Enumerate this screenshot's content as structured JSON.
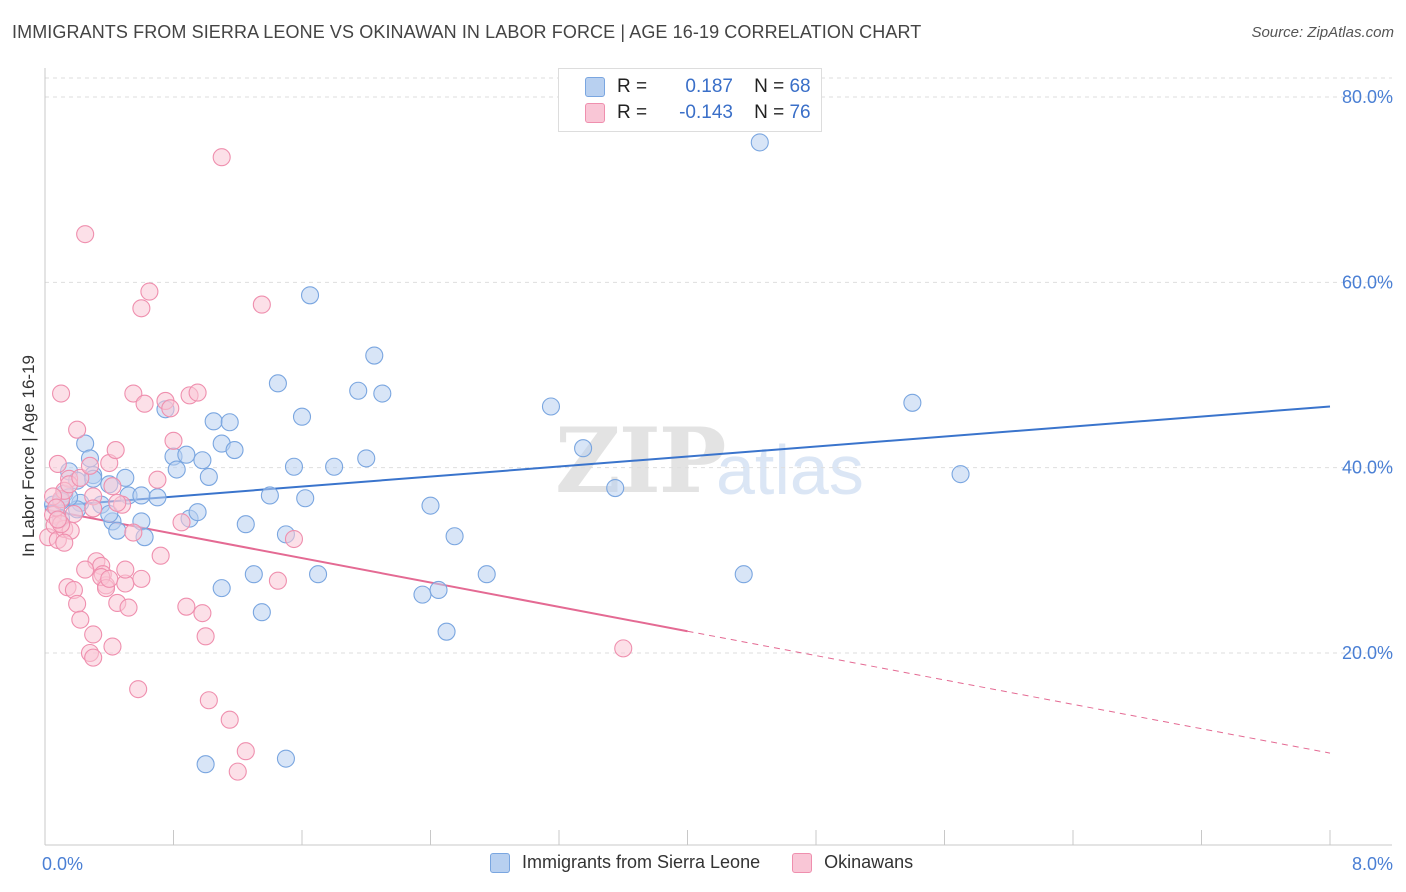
{
  "title": "IMMIGRANTS FROM SIERRA LEONE VS OKINAWAN IN LABOR FORCE | AGE 16-19 CORRELATION CHART",
  "source": "Source: ZipAtlas.com",
  "watermark": {
    "zip": "ZIP",
    "atlas": "atlas"
  },
  "colors": {
    "blue_fill": "#b8d0f0",
    "blue_stroke": "#7aa6e0",
    "blue_line": "#3a74cc",
    "pink_fill": "#f9c6d6",
    "pink_stroke": "#ef8fae",
    "pink_line": "#e46a93",
    "tick_text": "#4a7fd4"
  },
  "legend": {
    "rows": [
      {
        "r_label": "R =",
        "r_value": "0.187",
        "n_label": "N =",
        "n_value": "68"
      },
      {
        "r_label": "R =",
        "r_value": "-0.143",
        "n_label": "N =",
        "n_value": "76"
      }
    ]
  },
  "bottom_legend": [
    "Immigrants from Sierra Leone",
    "Okinawans"
  ],
  "chart_data": {
    "type": "scatter",
    "title": "IMMIGRANTS FROM SIERRA LEONE VS OKINAWAN IN LABOR FORCE | AGE 16-19 CORRELATION CHART",
    "xlabel": "",
    "ylabel": "In Labor Force | Age 16-19",
    "xlim": [
      0,
      8
    ],
    "ylim": [
      0,
      83
    ],
    "x_tick_labels": [
      "0.0%",
      "8.0%"
    ],
    "y_ticks": [
      20,
      40,
      60,
      80
    ],
    "y_tick_labels": [
      "20.0%",
      "40.0%",
      "60.0%",
      "80.0%"
    ],
    "grid": true,
    "series": [
      {
        "name": "Immigrants from Sierra Leone",
        "color": "#7aa6e0",
        "trend": {
          "x0": 0.0,
          "y0": 35.8,
          "x1": 8.0,
          "y1": 46.6,
          "dashed_from": null
        },
        "points": [
          [
            0.05,
            36.0
          ],
          [
            0.1,
            34.5
          ],
          [
            0.12,
            37.2
          ],
          [
            0.15,
            39.6
          ],
          [
            0.2,
            38.6
          ],
          [
            0.22,
            36.2
          ],
          [
            0.3,
            39.2
          ],
          [
            0.25,
            42.6
          ],
          [
            0.28,
            41.0
          ],
          [
            0.35,
            36.0
          ],
          [
            0.4,
            38.2
          ],
          [
            0.42,
            34.2
          ],
          [
            0.45,
            33.2
          ],
          [
            0.5,
            38.9
          ],
          [
            0.52,
            37.0
          ],
          [
            0.6,
            34.2
          ],
          [
            0.62,
            32.5
          ],
          [
            0.7,
            36.8
          ],
          [
            0.75,
            46.3
          ],
          [
            0.8,
            41.2
          ],
          [
            0.82,
            39.8
          ],
          [
            0.88,
            41.4
          ],
          [
            0.9,
            34.5
          ],
          [
            0.95,
            35.2
          ],
          [
            0.98,
            40.8
          ],
          [
            1.02,
            39.0
          ],
          [
            1.05,
            45.0
          ],
          [
            1.1,
            42.6
          ],
          [
            1.15,
            44.9
          ],
          [
            1.18,
            41.9
          ],
          [
            1.25,
            33.9
          ],
          [
            1.3,
            28.5
          ],
          [
            1.35,
            24.4
          ],
          [
            1.4,
            37.0
          ],
          [
            1.45,
            49.1
          ],
          [
            1.5,
            32.8
          ],
          [
            1.55,
            40.1
          ],
          [
            1.6,
            45.5
          ],
          [
            1.62,
            36.7
          ],
          [
            1.65,
            58.6
          ],
          [
            1.7,
            28.5
          ],
          [
            1.8,
            40.1
          ],
          [
            1.95,
            48.3
          ],
          [
            2.0,
            41.0
          ],
          [
            2.05,
            52.1
          ],
          [
            2.1,
            48.0
          ],
          [
            2.35,
            26.3
          ],
          [
            2.4,
            35.9
          ],
          [
            2.45,
            26.8
          ],
          [
            2.5,
            22.3
          ],
          [
            2.55,
            32.6
          ],
          [
            2.75,
            28.5
          ],
          [
            3.15,
            46.6
          ],
          [
            3.35,
            42.1
          ],
          [
            3.55,
            37.8
          ],
          [
            4.35,
            28.5
          ],
          [
            4.45,
            75.1
          ],
          [
            5.4,
            47.0
          ],
          [
            5.7,
            39.3
          ],
          [
            1.0,
            8.0
          ],
          [
            1.5,
            8.6
          ],
          [
            0.6,
            37.0
          ],
          [
            0.3,
            38.8
          ],
          [
            0.2,
            35.5
          ],
          [
            0.15,
            36.8
          ],
          [
            1.1,
            27.0
          ],
          [
            0.1,
            36.4
          ],
          [
            0.4,
            35.0
          ]
        ]
      },
      {
        "name": "Okinawans",
        "color": "#ef8fae",
        "trend": {
          "x0": 0.0,
          "y0": 35.5,
          "x1": 8.0,
          "y1": 9.2,
          "dashed_from": 4.0
        },
        "points": [
          [
            0.02,
            32.5
          ],
          [
            0.05,
            34.9
          ],
          [
            0.06,
            33.8
          ],
          [
            0.08,
            32.2
          ],
          [
            0.1,
            36.6
          ],
          [
            0.12,
            33.4
          ],
          [
            0.14,
            27.1
          ],
          [
            0.15,
            38.8
          ],
          [
            0.16,
            33.2
          ],
          [
            0.18,
            26.8
          ],
          [
            0.2,
            25.3
          ],
          [
            0.22,
            23.6
          ],
          [
            0.25,
            65.2
          ],
          [
            0.28,
            20.0
          ],
          [
            0.3,
            19.5
          ],
          [
            0.32,
            29.9
          ],
          [
            0.35,
            29.4
          ],
          [
            0.36,
            28.5
          ],
          [
            0.38,
            27.3
          ],
          [
            0.4,
            40.5
          ],
          [
            0.42,
            38.0
          ],
          [
            0.44,
            41.9
          ],
          [
            0.45,
            25.4
          ],
          [
            0.48,
            36.0
          ],
          [
            0.5,
            27.5
          ],
          [
            0.52,
            24.9
          ],
          [
            0.55,
            48.0
          ],
          [
            0.58,
            16.1
          ],
          [
            0.6,
            57.2
          ],
          [
            0.62,
            46.9
          ],
          [
            0.65,
            59.0
          ],
          [
            0.7,
            38.7
          ],
          [
            0.72,
            30.5
          ],
          [
            0.75,
            47.2
          ],
          [
            0.78,
            46.4
          ],
          [
            0.8,
            42.9
          ],
          [
            0.85,
            34.1
          ],
          [
            0.88,
            25.0
          ],
          [
            0.9,
            47.8
          ],
          [
            0.95,
            48.1
          ],
          [
            0.98,
            24.3
          ],
          [
            1.0,
            21.8
          ],
          [
            1.02,
            14.9
          ],
          [
            1.1,
            73.5
          ],
          [
            1.15,
            12.8
          ],
          [
            1.2,
            7.2
          ],
          [
            1.25,
            9.4
          ],
          [
            1.35,
            57.6
          ],
          [
            1.45,
            27.8
          ],
          [
            1.55,
            32.3
          ],
          [
            3.6,
            20.5
          ],
          [
            0.1,
            48.0
          ],
          [
            0.08,
            40.4
          ],
          [
            0.12,
            37.5
          ],
          [
            0.2,
            44.1
          ],
          [
            0.3,
            36.9
          ],
          [
            0.35,
            28.2
          ],
          [
            0.38,
            27.0
          ],
          [
            0.42,
            20.7
          ],
          [
            0.18,
            35.0
          ],
          [
            0.25,
            29.0
          ],
          [
            0.3,
            35.6
          ],
          [
            0.05,
            36.9
          ],
          [
            0.07,
            35.7
          ],
          [
            0.15,
            38.2
          ],
          [
            0.4,
            28.0
          ],
          [
            0.55,
            33.0
          ],
          [
            0.22,
            38.9
          ],
          [
            0.28,
            40.2
          ],
          [
            0.12,
            31.9
          ],
          [
            0.6,
            28.0
          ],
          [
            0.45,
            36.2
          ],
          [
            0.1,
            33.9
          ],
          [
            0.08,
            34.4
          ],
          [
            0.3,
            22.0
          ],
          [
            0.5,
            29.0
          ]
        ]
      }
    ]
  }
}
